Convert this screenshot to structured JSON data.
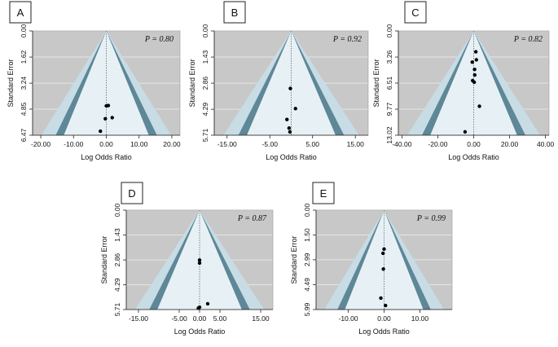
{
  "colors": {
    "background": "#c8c8c8",
    "gridline": "#e6e6e6",
    "outer_band": "#c7dce5",
    "mid_band": "#5e8797",
    "inner_band": "#e7f1f5",
    "point": "#000000",
    "axis": "#222222",
    "text": "#111111"
  },
  "chart_data": [
    {
      "panel": "A",
      "type": "scatter",
      "subtype": "funnel",
      "pvalue_label": "P = 0.80",
      "xlabel": "Log Odds Ratio",
      "ylabel": "Standard Error",
      "xlim": [
        -22.5,
        22.5
      ],
      "ylim": [
        0,
        6.47
      ],
      "xticks": [
        -20,
        -10,
        0,
        10,
        20
      ],
      "xtick_labels": [
        "-20.00",
        "-10.00",
        "0.00",
        "10.00",
        "20.00"
      ],
      "yticks": [
        0,
        1.62,
        3.24,
        4.85,
        6.47
      ],
      "ytick_labels": [
        "0.00",
        "1.62",
        "3.24",
        "4.85",
        "6.47"
      ],
      "center": 0,
      "points": [
        {
          "x": 0.0,
          "y": 4.65
        },
        {
          "x": 0.6,
          "y": 4.63
        },
        {
          "x": -0.3,
          "y": 5.45
        },
        {
          "x": 1.8,
          "y": 5.38
        },
        {
          "x": -1.8,
          "y": 6.22
        }
      ]
    },
    {
      "panel": "B",
      "type": "scatter",
      "subtype": "funnel",
      "pvalue_label": "P = 0.92",
      "xlabel": "Log Odds Ratio",
      "ylabel": "Standard Error",
      "xlim": [
        -18,
        18
      ],
      "ylim": [
        0,
        5.71
      ],
      "xticks": [
        -15,
        -5,
        5,
        15
      ],
      "xtick_labels": [
        "-15.00",
        "-5.00",
        "5.00",
        "15.00"
      ],
      "yticks": [
        0,
        1.43,
        2.86,
        4.29,
        5.71
      ],
      "ytick_labels": [
        "0.00",
        "1.43",
        "2.86",
        "4.29",
        "5.71"
      ],
      "center": 0,
      "points": [
        {
          "x": -0.2,
          "y": 3.15
        },
        {
          "x": 1.0,
          "y": 4.25
        },
        {
          "x": -1.0,
          "y": 4.85
        },
        {
          "x": -0.5,
          "y": 5.32
        },
        {
          "x": -0.3,
          "y": 5.53
        }
      ]
    },
    {
      "panel": "C",
      "type": "scatter",
      "subtype": "funnel",
      "pvalue_label": "P = 0.82",
      "xlabel": "Log Odds Ratio",
      "ylabel": "Standard Error",
      "xlim": [
        -42,
        42
      ],
      "ylim": [
        0,
        13.02
      ],
      "xticks": [
        -40,
        -20,
        0,
        20,
        40
      ],
      "xtick_labels": [
        "-40.00",
        "-20.00",
        "0.00",
        "20.00",
        "40.00"
      ],
      "yticks": [
        0,
        3.26,
        6.51,
        9.77,
        13.02
      ],
      "ytick_labels": [
        "0.00",
        "3.26",
        "6.51",
        "9.77",
        "13.02"
      ],
      "center": 0,
      "points": [
        {
          "x": 1.2,
          "y": 2.6
        },
        {
          "x": 1.5,
          "y": 3.6
        },
        {
          "x": -0.8,
          "y": 3.9
        },
        {
          "x": 0.5,
          "y": 4.8
        },
        {
          "x": 0.6,
          "y": 5.5
        },
        {
          "x": -0.6,
          "y": 6.2
        },
        {
          "x": 0.3,
          "y": 6.4
        },
        {
          "x": 3.2,
          "y": 9.4
        },
        {
          "x": -4.8,
          "y": 12.6
        }
      ]
    },
    {
      "panel": "D",
      "type": "scatter",
      "subtype": "funnel",
      "pvalue_label": "P = 0.87",
      "xlabel": "Log Odds Ratio",
      "ylabel": "Standard Error",
      "xlim": [
        -18,
        18
      ],
      "ylim": [
        0,
        5.71
      ],
      "xticks": [
        -15,
        -5,
        0,
        5,
        15
      ],
      "xtick_labels": [
        "-15.00",
        "-5.00",
        "0.00",
        "5.00",
        "15.00"
      ],
      "yticks": [
        0,
        1.43,
        2.86,
        4.29,
        5.71
      ],
      "ytick_labels": [
        "0.00",
        "1.43",
        "2.86",
        "4.29",
        "5.71"
      ],
      "center": 0,
      "points": [
        {
          "x": 0.0,
          "y": 2.87
        },
        {
          "x": 0.0,
          "y": 3.04
        },
        {
          "x": 2.0,
          "y": 5.38
        },
        {
          "x": 0.0,
          "y": 5.58
        },
        {
          "x": -0.3,
          "y": 5.63
        }
      ]
    },
    {
      "panel": "E",
      "type": "scatter",
      "subtype": "funnel",
      "pvalue_label": "P = 0.99",
      "xlabel": "Log Odds Ratio",
      "ylabel": "Standard Error",
      "xlim": [
        -19,
        19
      ],
      "ylim": [
        0,
        5.99
      ],
      "xticks": [
        -10,
        0,
        10
      ],
      "xtick_labels": [
        "-10.00",
        "0.00",
        "10.00"
      ],
      "yticks": [
        0,
        1.5,
        2.99,
        4.49,
        5.99
      ],
      "ytick_labels": [
        "0.00",
        "1.50",
        "2.99",
        "4.49",
        "5.99"
      ],
      "center": 0,
      "points": [
        {
          "x": 0.0,
          "y": 2.35
        },
        {
          "x": -0.3,
          "y": 2.6
        },
        {
          "x": -0.2,
          "y": 3.55
        },
        {
          "x": -0.9,
          "y": 5.3
        },
        {
          "x": 0.4,
          "y": 5.75
        }
      ]
    }
  ]
}
